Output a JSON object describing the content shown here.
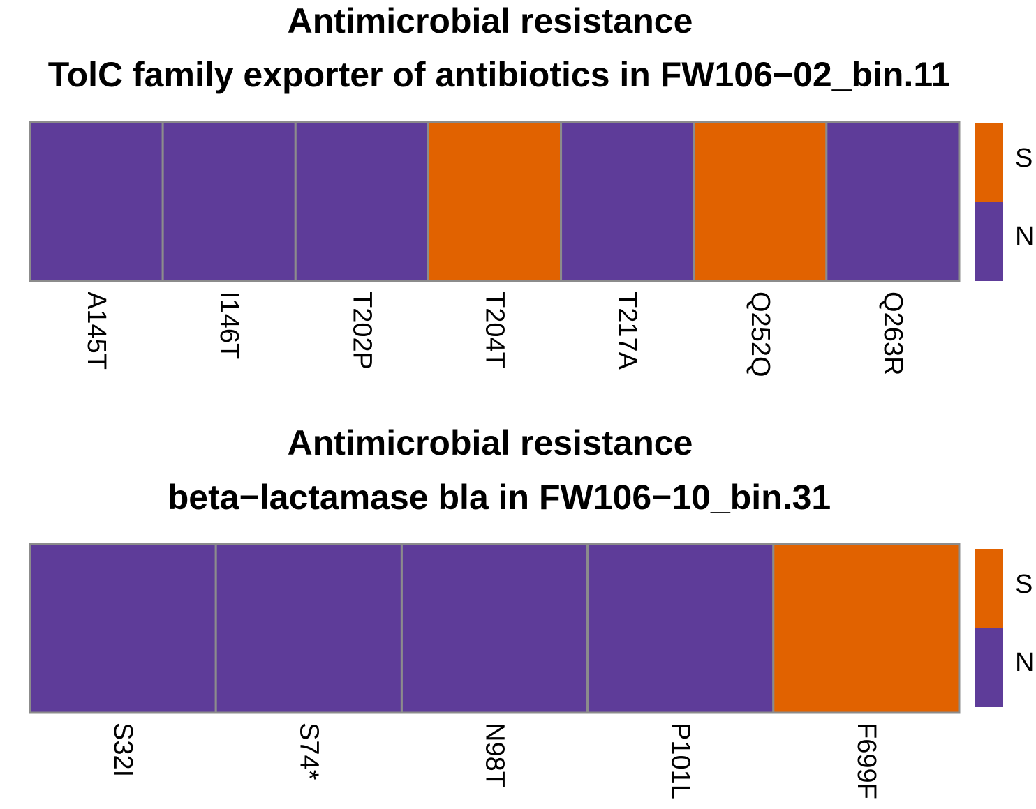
{
  "colors": {
    "S": "#E16200",
    "N": "#5E3C99",
    "grid": "#8C8C8C"
  },
  "chart_data": [
    {
      "type": "heatmap",
      "title": "Antimicrobial resistance",
      "subtitle": "TolC family exporter of antibiotics in FW106−02_bin.11",
      "categories": [
        "A145T",
        "I146T",
        "T202P",
        "T204T",
        "T217A",
        "Q252Q",
        "Q263R"
      ],
      "values": [
        "N",
        "N",
        "N",
        "S",
        "N",
        "S",
        "N"
      ],
      "legend": [
        "S",
        "N"
      ],
      "legend_position": "right"
    },
    {
      "type": "heatmap",
      "title": "Antimicrobial resistance",
      "subtitle": "beta−lactamase bla in FW106−10_bin.31",
      "categories": [
        "S32I",
        "S74*",
        "N98T",
        "P101L",
        "F699F"
      ],
      "values": [
        "N",
        "N",
        "N",
        "N",
        "S"
      ],
      "legend": [
        "S",
        "N"
      ],
      "legend_position": "right"
    }
  ]
}
